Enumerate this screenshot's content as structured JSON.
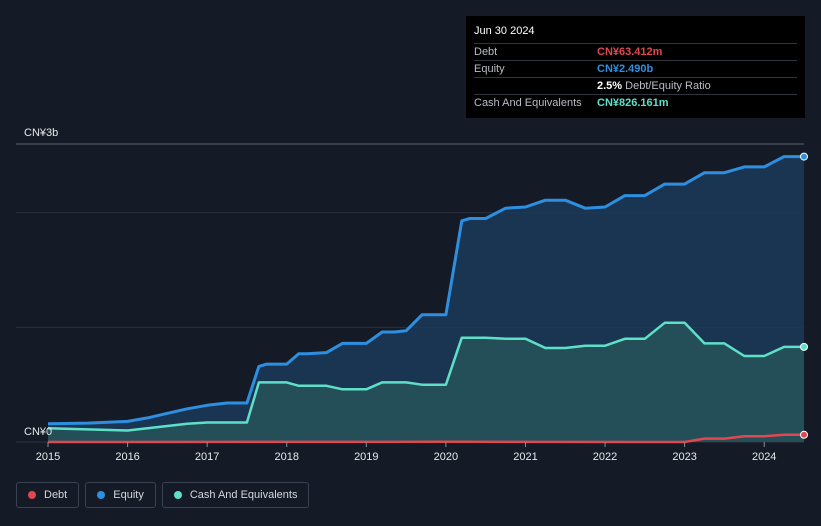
{
  "tooltip": {
    "date": "Jun 30 2024",
    "debt_label": "Debt",
    "debt_value": "CN¥63.412m",
    "equity_label": "Equity",
    "equity_value": "CN¥2.490b",
    "ratio_value": "2.5%",
    "ratio_label": "Debt/Equity Ratio",
    "cash_label": "Cash And Equivalents",
    "cash_value": "CN¥826.161m"
  },
  "legend": [
    {
      "label": "Debt",
      "color": "#e0484f"
    },
    {
      "label": "Equity",
      "color": "#2e8fe0"
    },
    {
      "label": "Cash And Equivalents",
      "color": "#5ee0c8"
    }
  ],
  "chart_data": {
    "type": "area",
    "y_unit": "CN¥ billions",
    "ylim": [
      0,
      2.6
    ],
    "y_tick_labels": [
      {
        "value": 2.6,
        "label": "CN¥3b"
      },
      {
        "value": 0,
        "label": "CN¥0"
      }
    ],
    "gridlines": [
      2.6,
      2.0,
      1.0,
      0
    ],
    "xlim": [
      2015.0,
      2024.5
    ],
    "x_ticks": [
      2015,
      2016,
      2017,
      2018,
      2019,
      2020,
      2021,
      2022,
      2023,
      2024
    ],
    "series": [
      {
        "name": "Equity",
        "color": "#2e8fe0",
        "points": [
          [
            2015.0,
            0.16
          ],
          [
            2015.5,
            0.165
          ],
          [
            2016.0,
            0.18
          ],
          [
            2016.25,
            0.21
          ],
          [
            2016.5,
            0.25
          ],
          [
            2016.75,
            0.29
          ],
          [
            2017.0,
            0.32
          ],
          [
            2017.25,
            0.34
          ],
          [
            2017.5,
            0.34
          ],
          [
            2017.65,
            0.66
          ],
          [
            2017.75,
            0.68
          ],
          [
            2018.0,
            0.68
          ],
          [
            2018.15,
            0.77
          ],
          [
            2018.25,
            0.77
          ],
          [
            2018.5,
            0.78
          ],
          [
            2018.7,
            0.86
          ],
          [
            2018.85,
            0.86
          ],
          [
            2019.0,
            0.86
          ],
          [
            2019.2,
            0.96
          ],
          [
            2019.35,
            0.96
          ],
          [
            2019.5,
            0.97
          ],
          [
            2019.7,
            1.11
          ],
          [
            2019.8,
            1.11
          ],
          [
            2020.0,
            1.11
          ],
          [
            2020.2,
            1.93
          ],
          [
            2020.3,
            1.95
          ],
          [
            2020.5,
            1.95
          ],
          [
            2020.75,
            2.04
          ],
          [
            2021.0,
            2.05
          ],
          [
            2021.25,
            2.11
          ],
          [
            2021.5,
            2.11
          ],
          [
            2021.75,
            2.04
          ],
          [
            2022.0,
            2.05
          ],
          [
            2022.25,
            2.15
          ],
          [
            2022.5,
            2.15
          ],
          [
            2022.75,
            2.25
          ],
          [
            2023.0,
            2.25
          ],
          [
            2023.25,
            2.35
          ],
          [
            2023.5,
            2.35
          ],
          [
            2023.75,
            2.4
          ],
          [
            2024.0,
            2.4
          ],
          [
            2024.25,
            2.49
          ],
          [
            2024.5,
            2.49
          ]
        ]
      },
      {
        "name": "Cash And Equivalents",
        "color": "#5ee0c8",
        "points": [
          [
            2015.0,
            0.12
          ],
          [
            2015.5,
            0.11
          ],
          [
            2016.0,
            0.1
          ],
          [
            2016.25,
            0.12
          ],
          [
            2016.5,
            0.14
          ],
          [
            2016.75,
            0.16
          ],
          [
            2017.0,
            0.17
          ],
          [
            2017.25,
            0.17
          ],
          [
            2017.5,
            0.17
          ],
          [
            2017.65,
            0.52
          ],
          [
            2017.75,
            0.52
          ],
          [
            2018.0,
            0.52
          ],
          [
            2018.15,
            0.49
          ],
          [
            2018.25,
            0.49
          ],
          [
            2018.5,
            0.49
          ],
          [
            2018.7,
            0.46
          ],
          [
            2018.85,
            0.46
          ],
          [
            2019.0,
            0.46
          ],
          [
            2019.2,
            0.52
          ],
          [
            2019.35,
            0.52
          ],
          [
            2019.5,
            0.52
          ],
          [
            2019.7,
            0.5
          ],
          [
            2019.8,
            0.5
          ],
          [
            2020.0,
            0.5
          ],
          [
            2020.2,
            0.91
          ],
          [
            2020.3,
            0.91
          ],
          [
            2020.5,
            0.91
          ],
          [
            2020.75,
            0.9
          ],
          [
            2021.0,
            0.9
          ],
          [
            2021.25,
            0.82
          ],
          [
            2021.5,
            0.82
          ],
          [
            2021.75,
            0.84
          ],
          [
            2022.0,
            0.84
          ],
          [
            2022.25,
            0.9
          ],
          [
            2022.5,
            0.9
          ],
          [
            2022.75,
            1.04
          ],
          [
            2023.0,
            1.04
          ],
          [
            2023.25,
            0.86
          ],
          [
            2023.5,
            0.86
          ],
          [
            2023.75,
            0.75
          ],
          [
            2024.0,
            0.75
          ],
          [
            2024.25,
            0.83
          ],
          [
            2024.5,
            0.83
          ]
        ]
      },
      {
        "name": "Debt",
        "color": "#e0484f",
        "points": [
          [
            2015.0,
            0.0
          ],
          [
            2016.0,
            0.0
          ],
          [
            2020.0,
            0.002
          ],
          [
            2023.0,
            0.0
          ],
          [
            2023.25,
            0.03
          ],
          [
            2023.5,
            0.03
          ],
          [
            2023.75,
            0.05
          ],
          [
            2024.0,
            0.05
          ],
          [
            2024.25,
            0.063
          ],
          [
            2024.5,
            0.063
          ]
        ]
      }
    ]
  }
}
